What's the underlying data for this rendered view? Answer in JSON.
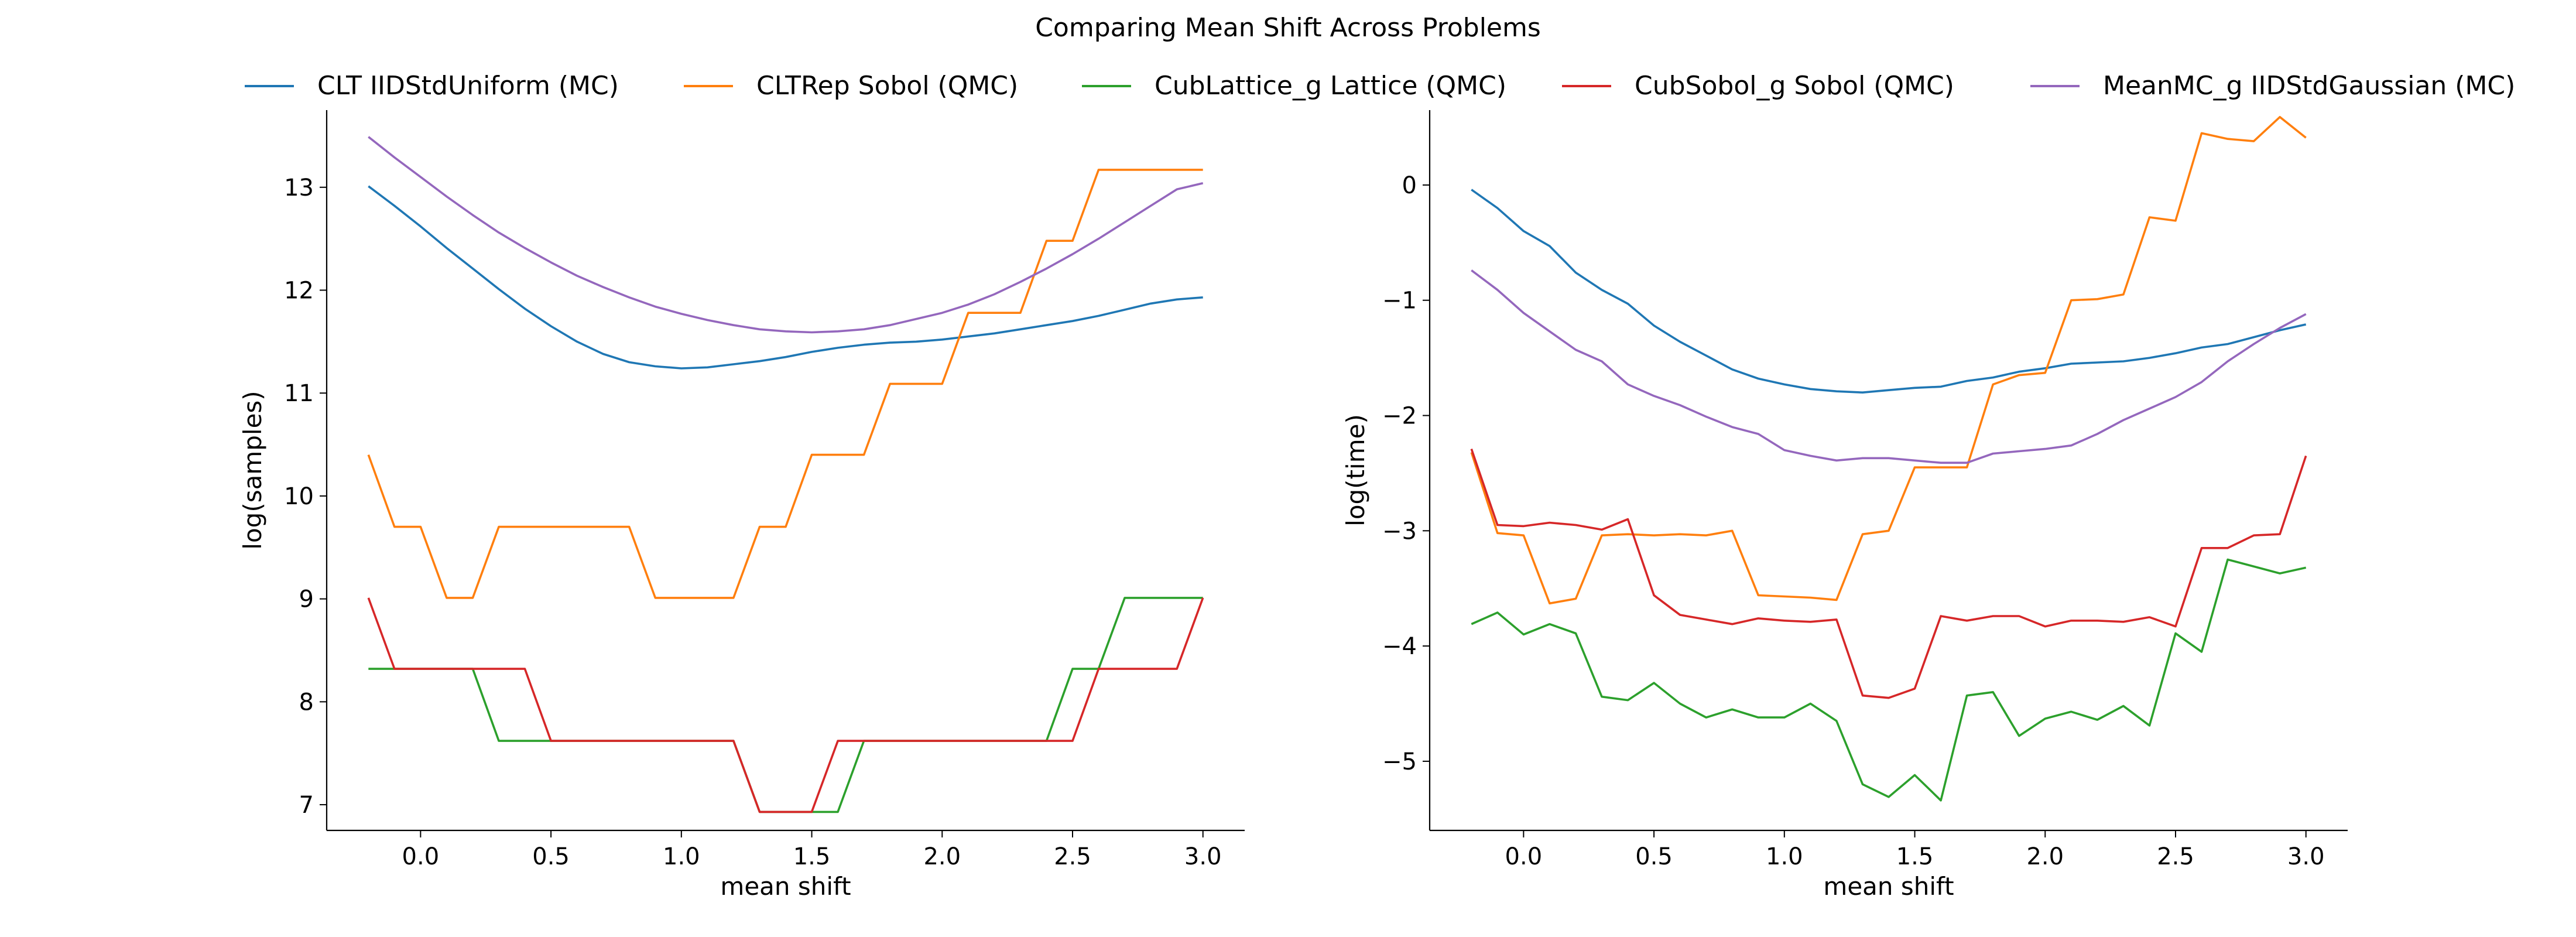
{
  "title": "Comparing Mean Shift Across Problems",
  "legend": {
    "placement": "top",
    "entries": [
      {
        "label": "CLT IIDStdUniform (MC)",
        "color": "#1f77b4"
      },
      {
        "label": "CLTRep Sobol (QMC)",
        "color": "#ff7f0e"
      },
      {
        "label": "CubLattice_g Lattice (QMC)",
        "color": "#2ca02c"
      },
      {
        "label": "CubSobol_g Sobol (QMC)",
        "color": "#d62728"
      },
      {
        "label": "MeanMC_g IIDStdGaussian (MC)",
        "color": "#9467bd"
      }
    ]
  },
  "chart_data": [
    {
      "type": "line",
      "xlabel": "mean shift",
      "ylabel": "log(samples)",
      "xlim": [
        -0.36,
        3.16
      ],
      "ylim": [
        6.75,
        13.75
      ],
      "xticks": [
        0.0,
        0.5,
        1.0,
        1.5,
        2.0,
        2.5,
        3.0
      ],
      "xtick_labels": [
        "0.0",
        "0.5",
        "1.0",
        "1.5",
        "2.0",
        "2.5",
        "3.0"
      ],
      "yticks": [
        7,
        8,
        9,
        10,
        11,
        12,
        13
      ],
      "ytick_labels": [
        "7",
        "8",
        "9",
        "10",
        "11",
        "12",
        "13"
      ],
      "grid": false,
      "x": [
        -0.2,
        -0.1,
        0.0,
        0.1,
        0.2,
        0.3,
        0.4,
        0.5,
        0.6,
        0.7,
        0.8,
        0.9,
        1.0,
        1.1,
        1.2,
        1.3,
        1.4,
        1.5,
        1.6,
        1.7,
        1.8,
        1.9,
        2.0,
        2.1,
        2.2,
        2.3,
        2.4,
        2.5,
        2.6,
        2.7,
        2.8,
        2.9,
        3.0
      ],
      "series": [
        {
          "name": "CLT IIDStdUniform (MC)",
          "color": "#1f77b4",
          "values": [
            13.01,
            12.82,
            12.62,
            12.41,
            12.21,
            12.01,
            11.82,
            11.65,
            11.5,
            11.38,
            11.3,
            11.26,
            11.24,
            11.25,
            11.28,
            11.31,
            11.35,
            11.4,
            11.44,
            11.47,
            11.49,
            11.5,
            11.52,
            11.55,
            11.58,
            11.62,
            11.66,
            11.7,
            11.75,
            11.81,
            11.87,
            11.91,
            11.93
          ]
        },
        {
          "name": "CLTRep Sobol (QMC)",
          "color": "#ff7f0e",
          "values": [
            10.4,
            9.7,
            9.7,
            9.01,
            9.01,
            9.7,
            9.7,
            9.7,
            9.7,
            9.7,
            9.7,
            9.01,
            9.01,
            9.01,
            9.01,
            9.7,
            9.7,
            10.4,
            10.4,
            10.4,
            11.09,
            11.09,
            11.09,
            11.78,
            11.78,
            11.78,
            12.48,
            12.48,
            13.17,
            13.17,
            13.17,
            13.17,
            13.17
          ]
        },
        {
          "name": "CubLattice_g Lattice (QMC)",
          "color": "#2ca02c",
          "values": [
            8.32,
            8.32,
            8.32,
            8.32,
            8.32,
            7.62,
            7.62,
            7.62,
            7.62,
            7.62,
            7.62,
            7.62,
            7.62,
            7.62,
            7.62,
            6.93,
            6.93,
            6.93,
            6.93,
            7.62,
            7.62,
            7.62,
            7.62,
            7.62,
            7.62,
            7.62,
            7.62,
            8.32,
            8.32,
            9.01,
            9.01,
            9.01,
            9.01
          ]
        },
        {
          "name": "CubSobol_g Sobol (QMC)",
          "color": "#d62728",
          "values": [
            9.01,
            8.32,
            8.32,
            8.32,
            8.32,
            8.32,
            8.32,
            7.62,
            7.62,
            7.62,
            7.62,
            7.62,
            7.62,
            7.62,
            7.62,
            6.93,
            6.93,
            6.93,
            7.62,
            7.62,
            7.62,
            7.62,
            7.62,
            7.62,
            7.62,
            7.62,
            7.62,
            7.62,
            8.32,
            8.32,
            8.32,
            8.32,
            9.01
          ]
        },
        {
          "name": "MeanMC_g IIDStdGaussian (MC)",
          "color": "#9467bd",
          "values": [
            13.49,
            13.29,
            13.1,
            12.91,
            12.73,
            12.56,
            12.41,
            12.27,
            12.14,
            12.03,
            11.93,
            11.84,
            11.77,
            11.71,
            11.66,
            11.62,
            11.6,
            11.59,
            11.6,
            11.62,
            11.66,
            11.72,
            11.78,
            11.86,
            11.96,
            12.08,
            12.21,
            12.35,
            12.5,
            12.66,
            12.82,
            12.98,
            13.04
          ]
        }
      ]
    },
    {
      "type": "line",
      "xlabel": "mean shift",
      "ylabel": "log(time)",
      "xlim": [
        -0.36,
        3.16
      ],
      "ylim": [
        -5.6,
        0.65
      ],
      "xticks": [
        0.0,
        0.5,
        1.0,
        1.5,
        2.0,
        2.5,
        3.0
      ],
      "xtick_labels": [
        "0.0",
        "0.5",
        "1.0",
        "1.5",
        "2.0",
        "2.5",
        "3.0"
      ],
      "yticks": [
        -5,
        -4,
        -3,
        -2,
        -1,
        0
      ],
      "ytick_labels": [
        "−5",
        "−4",
        "−3",
        "−2",
        "−1",
        "0"
      ],
      "grid": false,
      "x": [
        -0.2,
        -0.1,
        0.0,
        0.1,
        0.2,
        0.3,
        0.4,
        0.5,
        0.6,
        0.7,
        0.8,
        0.9,
        1.0,
        1.1,
        1.2,
        1.3,
        1.4,
        1.5,
        1.6,
        1.7,
        1.8,
        1.9,
        2.0,
        2.1,
        2.2,
        2.3,
        2.4,
        2.5,
        2.6,
        2.7,
        2.8,
        2.9,
        3.0
      ],
      "series": [
        {
          "name": "CLT IIDStdUniform (MC)",
          "color": "#1f77b4",
          "values": [
            -0.04,
            -0.2,
            -0.4,
            -0.53,
            -0.76,
            -0.91,
            -1.03,
            -1.22,
            -1.36,
            -1.48,
            -1.6,
            -1.68,
            -1.73,
            -1.77,
            -1.79,
            -1.8,
            -1.78,
            -1.76,
            -1.75,
            -1.7,
            -1.67,
            -1.62,
            -1.59,
            -1.55,
            -1.54,
            -1.53,
            -1.5,
            -1.46,
            -1.41,
            -1.38,
            -1.32,
            -1.26,
            -1.21
          ]
        },
        {
          "name": "CLTRep Sobol (QMC)",
          "color": "#ff7f0e",
          "values": [
            -2.32,
            -3.02,
            -3.04,
            -3.63,
            -3.59,
            -3.04,
            -3.03,
            -3.04,
            -3.03,
            -3.04,
            -3.0,
            -3.56,
            -3.57,
            -3.58,
            -3.6,
            -3.03,
            -3.0,
            -2.45,
            -2.45,
            -2.45,
            -1.73,
            -1.65,
            -1.63,
            -1.0,
            -0.99,
            -0.95,
            -0.28,
            -0.31,
            0.45,
            0.4,
            0.38,
            0.59,
            0.41
          ]
        },
        {
          "name": "CubLattice_g Lattice (QMC)",
          "color": "#2ca02c",
          "values": [
            -3.81,
            -3.71,
            -3.9,
            -3.81,
            -3.89,
            -4.44,
            -4.47,
            -4.32,
            -4.5,
            -4.62,
            -4.55,
            -4.62,
            -4.62,
            -4.5,
            -4.65,
            -5.2,
            -5.31,
            -5.12,
            -5.34,
            -4.43,
            -4.4,
            -4.78,
            -4.63,
            -4.57,
            -4.64,
            -4.52,
            -4.69,
            -3.89,
            -4.05,
            -3.25,
            -3.31,
            -3.37,
            -3.32
          ]
        },
        {
          "name": "CubSobol_g Sobol (QMC)",
          "color": "#d62728",
          "values": [
            -2.29,
            -2.95,
            -2.96,
            -2.93,
            -2.95,
            -2.99,
            -2.9,
            -3.56,
            -3.73,
            -3.77,
            -3.81,
            -3.76,
            -3.78,
            -3.79,
            -3.77,
            -4.43,
            -4.45,
            -4.37,
            -3.74,
            -3.78,
            -3.74,
            -3.74,
            -3.83,
            -3.78,
            -3.78,
            -3.79,
            -3.75,
            -3.83,
            -3.15,
            -3.15,
            -3.04,
            -3.03,
            -2.35
          ]
        },
        {
          "name": "MeanMC_g IIDStdGaussian (MC)",
          "color": "#9467bd",
          "values": [
            -0.74,
            -0.91,
            -1.11,
            -1.27,
            -1.43,
            -1.53,
            -1.73,
            -1.83,
            -1.91,
            -2.01,
            -2.1,
            -2.16,
            -2.3,
            -2.35,
            -2.39,
            -2.37,
            -2.37,
            -2.39,
            -2.41,
            -2.41,
            -2.33,
            -2.31,
            -2.29,
            -2.26,
            -2.16,
            -2.04,
            -1.94,
            -1.84,
            -1.71,
            -1.53,
            -1.38,
            -1.24,
            -1.12
          ]
        }
      ]
    }
  ]
}
